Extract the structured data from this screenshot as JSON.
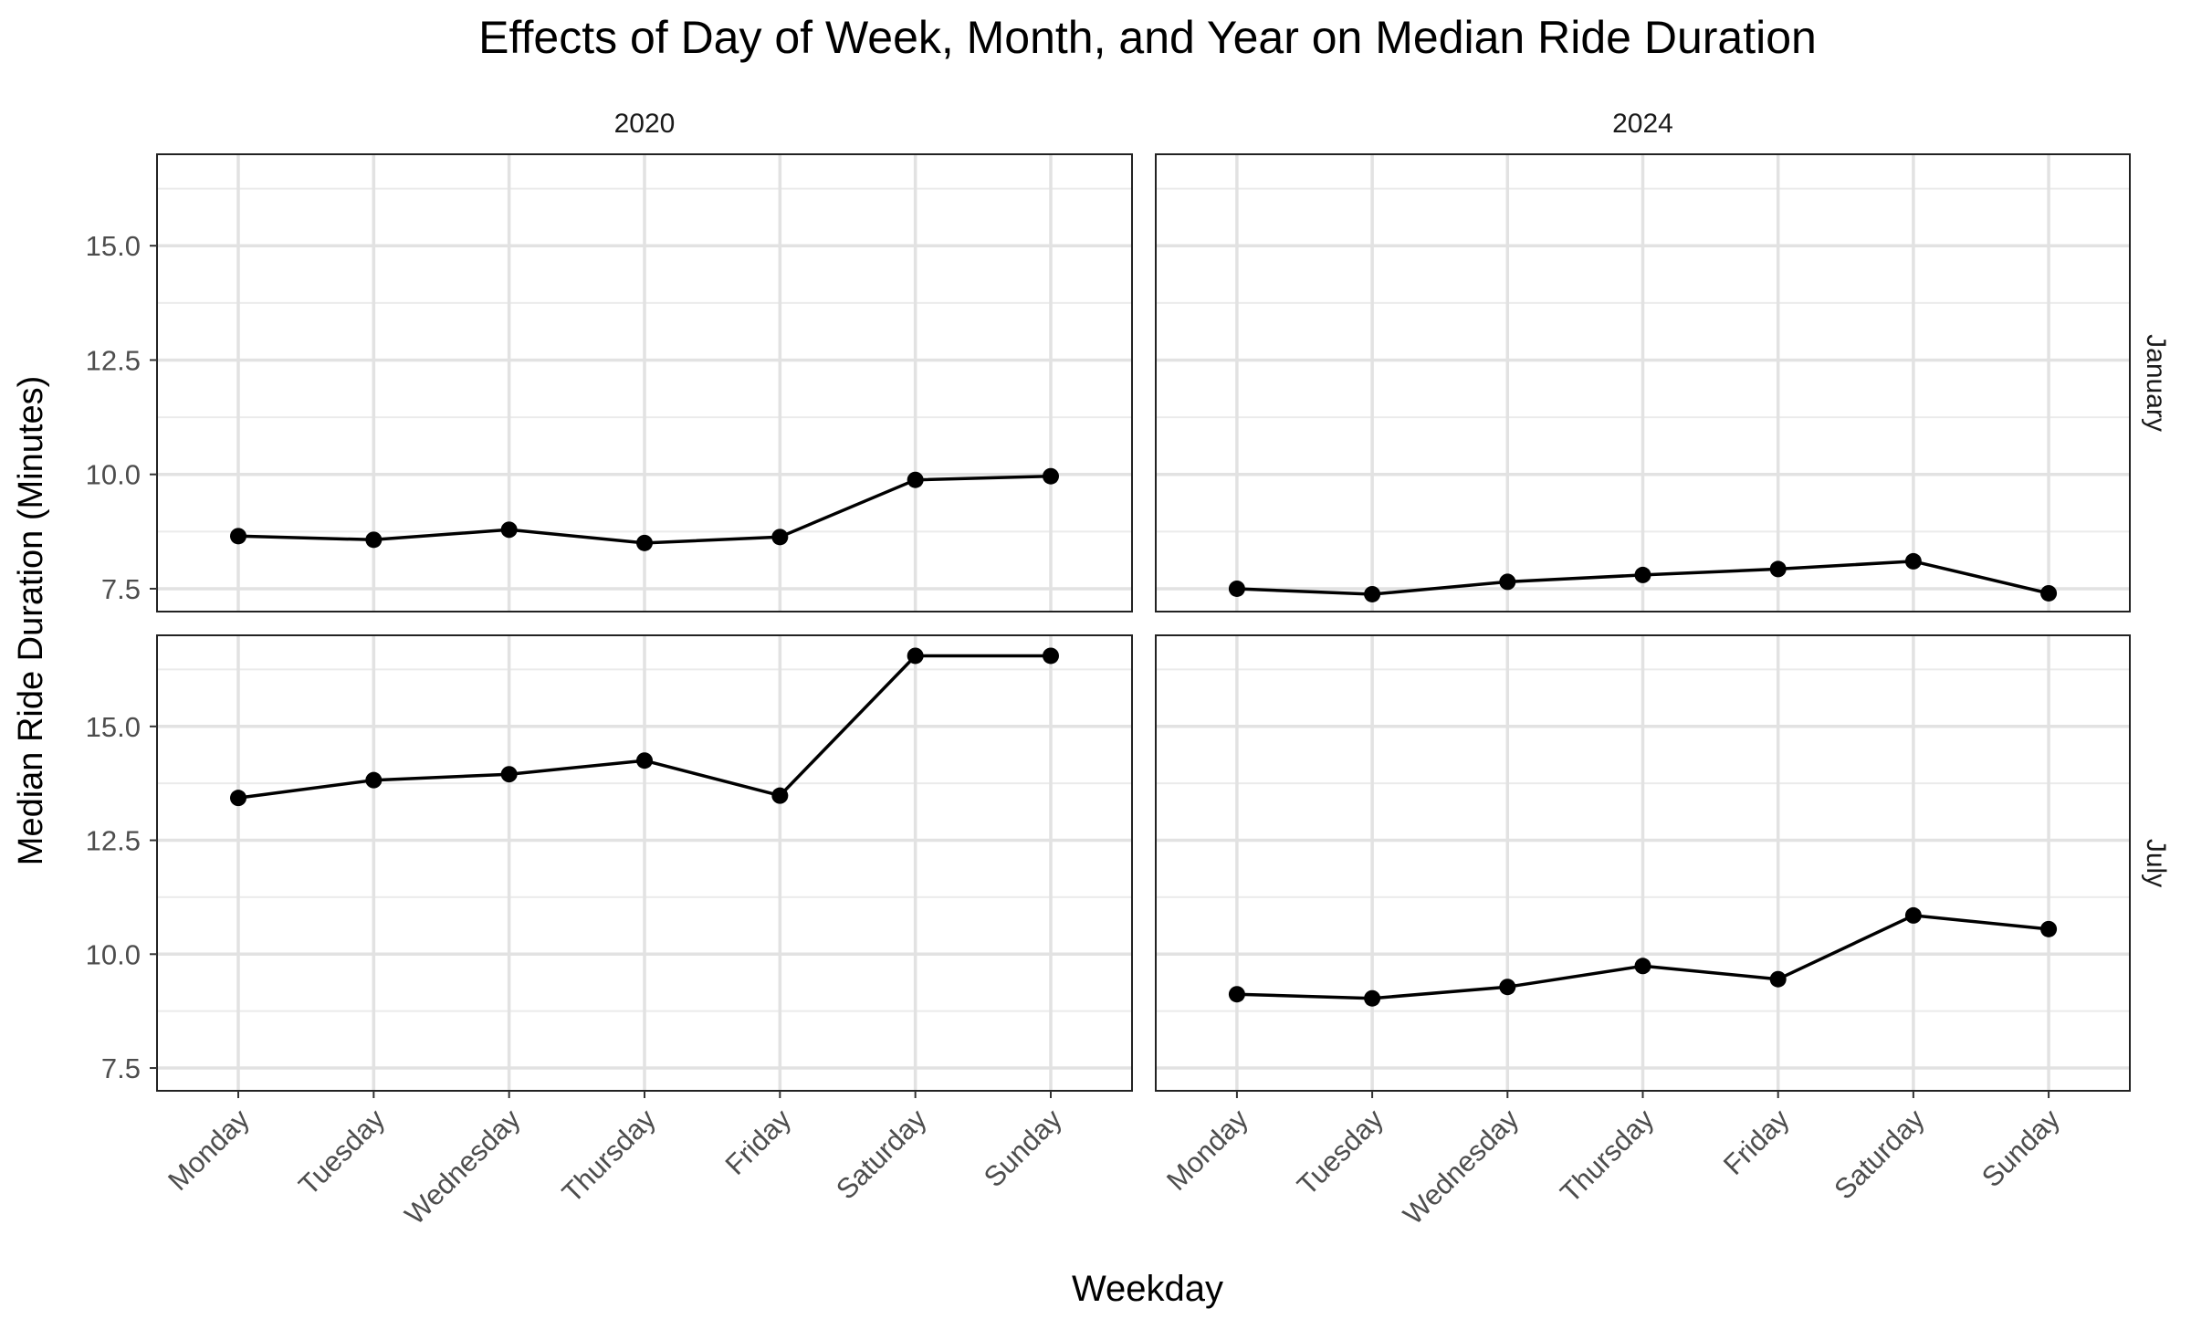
{
  "chart_data": {
    "type": "line",
    "title": "Effects of Day of Week, Month, and Year on Median Ride Duration",
    "xlabel": "Weekday",
    "ylabel": "Median Ride Duration (Minutes)",
    "categories": [
      "Monday",
      "Tuesday",
      "Wednesday",
      "Thursday",
      "Friday",
      "Saturday",
      "Sunday"
    ],
    "yticks": [
      "7.5",
      "10.0",
      "12.5",
      "15.0"
    ],
    "ylim": [
      7.0,
      17.0
    ],
    "facet_columns": [
      "2020",
      "2024"
    ],
    "facet_rows": [
      "January",
      "July"
    ],
    "grid": true,
    "line_color": "#000000",
    "panels": [
      {
        "year": "2020",
        "month": "January",
        "values": [
          8.65,
          8.57,
          8.79,
          8.5,
          8.63,
          9.88,
          9.96
        ]
      },
      {
        "year": "2024",
        "month": "January",
        "values": [
          7.5,
          7.38,
          7.65,
          7.8,
          7.93,
          8.1,
          7.4
        ]
      },
      {
        "year": "2020",
        "month": "July",
        "values": [
          13.43,
          13.82,
          13.95,
          14.25,
          13.48,
          16.55,
          16.55
        ]
      },
      {
        "year": "2024",
        "month": "July",
        "values": [
          9.12,
          9.03,
          9.28,
          9.74,
          9.45,
          10.85,
          10.55
        ]
      }
    ]
  }
}
